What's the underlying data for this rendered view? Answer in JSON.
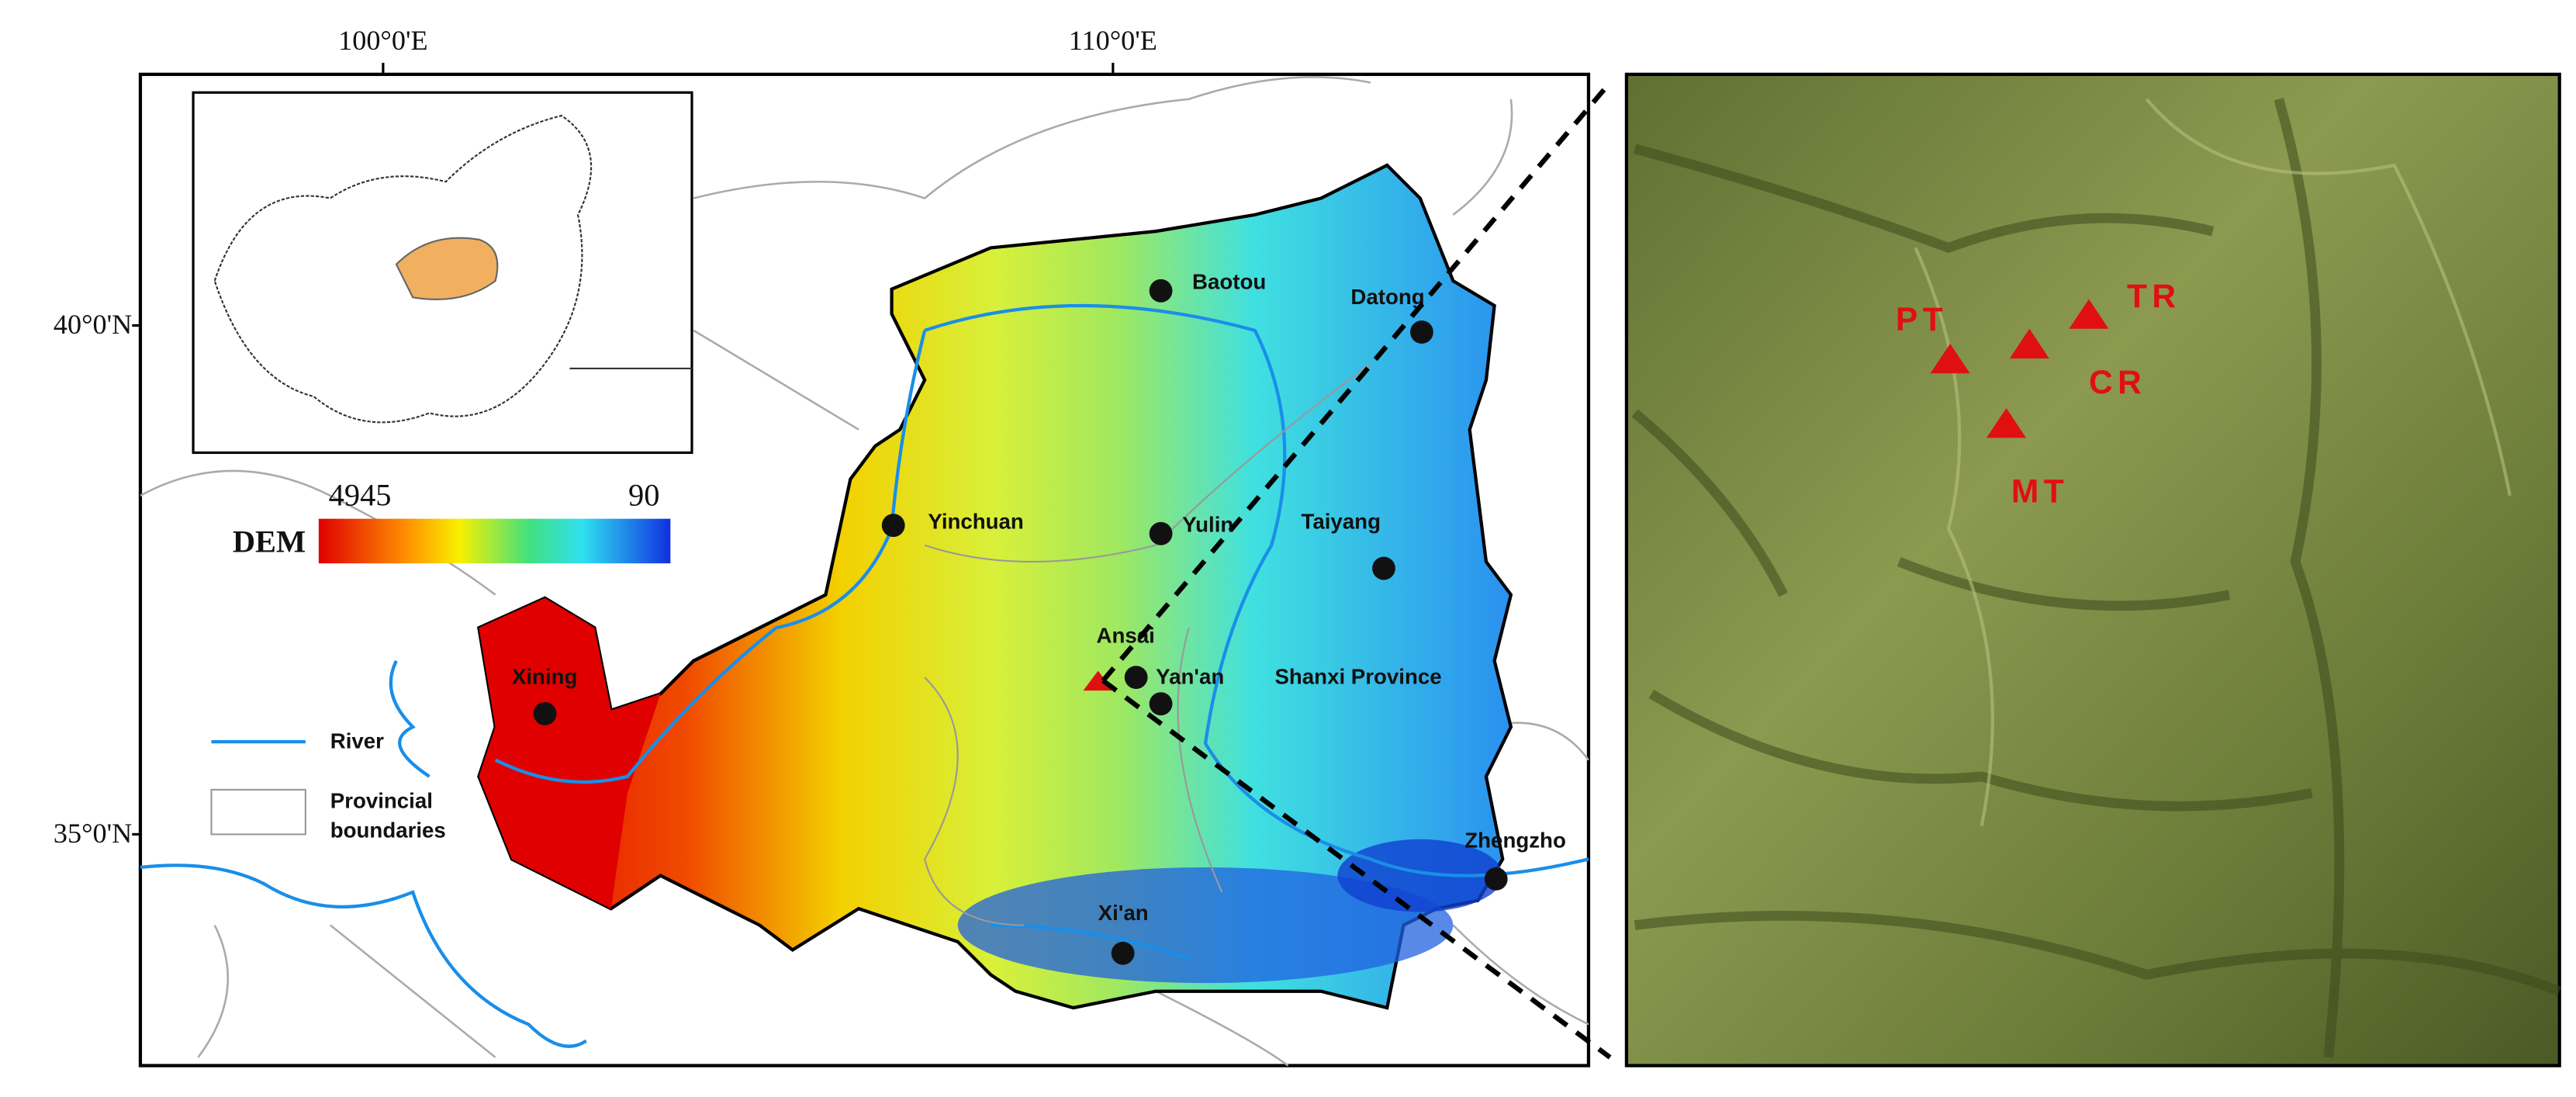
{
  "axes": {
    "top": [
      "100°0'E",
      "110°0'E"
    ],
    "left": [
      "40°0'N",
      "35°0'N"
    ]
  },
  "dem_legend": {
    "max": 4945,
    "min": 90,
    "title": "DEM"
  },
  "legend": {
    "river": "River",
    "boundaries": [
      "Provincial",
      "boundaries"
    ]
  },
  "cities": [
    "Baotou",
    "Datong",
    "Yinchuan",
    "Yulin",
    "Taiyang",
    "Yan'an",
    "Xining",
    "Xi'an",
    "Zhengzho"
  ],
  "site": "Ansai",
  "province_label": "Shanxi Province",
  "plots": [
    "PT",
    "TR",
    "CR",
    "MT"
  ]
}
